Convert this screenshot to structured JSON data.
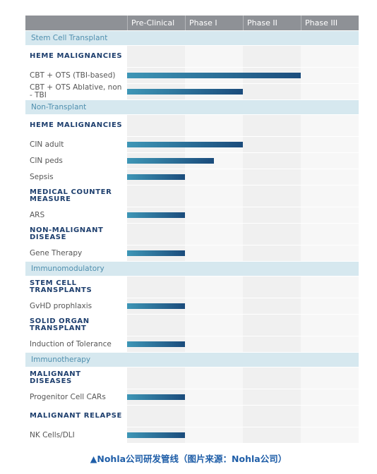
{
  "phases": [
    "Pre-Clinical",
    "Phase I",
    "Phase II",
    "Phase III"
  ],
  "sections": [
    {
      "title": "Stem Cell Transplant",
      "groups": [
        {
          "title": "HEME MALIGNANCIES",
          "rows": [
            {
              "label": "CBT + OTS (TBI-based)",
              "progress": 3
            },
            {
              "label": "CBT + OTS Ablative, non - TBI",
              "progress": 2
            }
          ]
        }
      ]
    },
    {
      "title": "Non-Transplant",
      "groups": [
        {
          "title": "HEME MALIGNANCIES",
          "rows": [
            {
              "label": "CIN adult",
              "progress": 2
            },
            {
              "label": "CIN peds",
              "progress": 1.5
            },
            {
              "label": "Sepsis",
              "progress": 1
            }
          ]
        },
        {
          "title": "MEDICAL COUNTER MEASURE",
          "rows": [
            {
              "label": "ARS",
              "progress": 1
            }
          ]
        },
        {
          "title": "NON-MALIGNANT DISEASE",
          "rows": [
            {
              "label": "Gene Therapy",
              "progress": 1
            }
          ]
        }
      ]
    },
    {
      "title": "Immunomodulatory",
      "groups": [
        {
          "title": "STEM CELL TRANSPLANTS",
          "rows": [
            {
              "label": "GvHD prophlaxis",
              "progress": 1
            }
          ]
        },
        {
          "title": "SOLID ORGAN TRANSPLANT",
          "rows": [
            {
              "label": "Induction of Tolerance",
              "progress": 1
            }
          ]
        }
      ]
    },
    {
      "title": "Immunotherapy",
      "groups": [
        {
          "title": "MALIGNANT DISEASES",
          "rows": [
            {
              "label": "Progenitor Cell CARs",
              "progress": 1
            }
          ]
        },
        {
          "title": "MALIGNANT RELAPSE",
          "rows": [
            {
              "label": "NK Cells/DLI",
              "progress": 1
            }
          ]
        }
      ]
    }
  ],
  "progress_max": 4,
  "caption": "▲Nohla公司研发管线（图片来源：Nohla公司）"
}
